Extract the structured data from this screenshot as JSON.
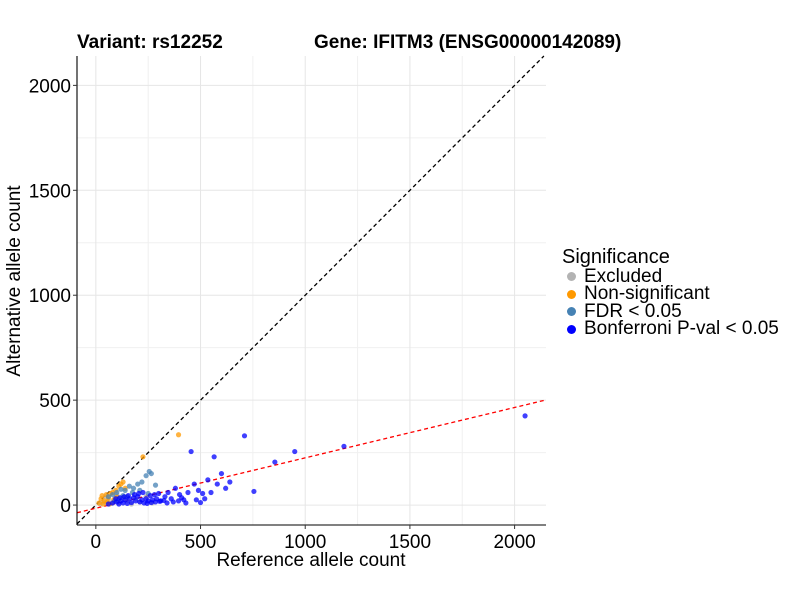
{
  "header": {
    "variant_label": "Variant: rs12252",
    "gene_label": "Gene: IFITM3 (ENSG00000142089)"
  },
  "legend": {
    "title": "Significance",
    "items": [
      {
        "label": "Excluded",
        "color": "#b3b3b3"
      },
      {
        "label": "Non-significant",
        "color": "#ff9900"
      },
      {
        "label": "FDR < 0.05",
        "color": "#4682b4"
      },
      {
        "label": "Bonferroni P-val < 0.05",
        "color": "#0000ff"
      }
    ]
  },
  "chart_data": {
    "type": "scatter",
    "title": "",
    "xlabel": "Reference allele count",
    "ylabel": "Alternative allele count",
    "xlim": [
      -90,
      2150
    ],
    "ylim": [
      -95,
      2140
    ],
    "x_ticks": [
      0,
      500,
      1000,
      1500,
      2000
    ],
    "y_ticks": [
      0,
      500,
      1000,
      1500,
      2000
    ],
    "grid": true,
    "legend_position": "right",
    "reference_lines": [
      {
        "slope": 1,
        "intercept": 0,
        "color": "#000000",
        "style": "dashed"
      },
      {
        "slope": 0.24,
        "intercept": -15,
        "color": "#ff0000",
        "style": "dashed"
      }
    ],
    "series": [
      {
        "name": "Excluded",
        "color": "#b3b3b3",
        "points": [
          [
            20,
            5
          ],
          [
            35,
            15
          ],
          [
            50,
            10
          ],
          [
            60,
            25
          ],
          [
            75,
            8
          ],
          [
            90,
            30
          ],
          [
            110,
            12
          ],
          [
            130,
            35
          ],
          [
            150,
            20
          ],
          [
            170,
            5
          ],
          [
            190,
            28
          ],
          [
            210,
            15
          ],
          [
            240,
            40
          ],
          [
            270,
            10
          ],
          [
            45,
            40
          ],
          [
            100,
            50
          ]
        ]
      },
      {
        "name": "Non-significant",
        "color": "#ff9900",
        "points": [
          [
            15,
            10
          ],
          [
            25,
            30
          ],
          [
            30,
            45
          ],
          [
            40,
            20
          ],
          [
            50,
            50
          ],
          [
            60,
            35
          ],
          [
            70,
            55
          ],
          [
            80,
            60
          ],
          [
            95,
            70
          ],
          [
            100,
            40
          ],
          [
            110,
            90
          ],
          [
            120,
            100
          ],
          [
            140,
            80
          ],
          [
            55,
            15
          ],
          [
            35,
            5
          ],
          [
            225,
            230
          ],
          [
            395,
            335
          ],
          [
            65,
            5
          ],
          [
            85,
            25
          ],
          [
            130,
            110
          ]
        ]
      },
      {
        "name": "FDR < 0.05",
        "color": "#4682b4",
        "points": [
          [
            60,
            40
          ],
          [
            80,
            50
          ],
          [
            100,
            60
          ],
          [
            120,
            75
          ],
          [
            140,
            70
          ],
          [
            160,
            90
          ],
          [
            180,
            80
          ],
          [
            200,
            100
          ],
          [
            220,
            110
          ],
          [
            240,
            140
          ],
          [
            255,
            160
          ],
          [
            265,
            150
          ],
          [
            285,
            95
          ],
          [
            90,
            20
          ],
          [
            110,
            30
          ],
          [
            150,
            40
          ],
          [
            175,
            60
          ],
          [
            210,
            70
          ],
          [
            250,
            55
          ],
          [
            130,
            45
          ]
        ]
      },
      {
        "name": "Bonferroni P-val < 0.05",
        "color": "#0000ff",
        "points": [
          [
            60,
            5
          ],
          [
            80,
            10
          ],
          [
            100,
            15
          ],
          [
            110,
            5
          ],
          [
            120,
            20
          ],
          [
            130,
            10
          ],
          [
            140,
            25
          ],
          [
            150,
            8
          ],
          [
            160,
            30
          ],
          [
            170,
            12
          ],
          [
            180,
            35
          ],
          [
            190,
            20
          ],
          [
            200,
            40
          ],
          [
            210,
            15
          ],
          [
            220,
            25
          ],
          [
            230,
            10
          ],
          [
            240,
            30
          ],
          [
            250,
            20
          ],
          [
            260,
            45
          ],
          [
            270,
            25
          ],
          [
            280,
            50
          ],
          [
            290,
            30
          ],
          [
            300,
            55
          ],
          [
            310,
            20
          ],
          [
            330,
            40
          ],
          [
            345,
            60
          ],
          [
            360,
            30
          ],
          [
            380,
            80
          ],
          [
            400,
            50
          ],
          [
            420,
            25
          ],
          [
            440,
            60
          ],
          [
            455,
            255
          ],
          [
            470,
            100
          ],
          [
            490,
            70
          ],
          [
            510,
            55
          ],
          [
            520,
            30
          ],
          [
            535,
            120
          ],
          [
            550,
            60
          ],
          [
            565,
            230
          ],
          [
            580,
            100
          ],
          [
            600,
            150
          ],
          [
            620,
            80
          ],
          [
            640,
            110
          ],
          [
            710,
            330
          ],
          [
            755,
            65
          ],
          [
            855,
            205
          ],
          [
            950,
            255
          ],
          [
            1185,
            280
          ],
          [
            2050,
            425
          ],
          [
            95,
            30
          ],
          [
            115,
            35
          ],
          [
            135,
            40
          ],
          [
            155,
            45
          ],
          [
            185,
            50
          ],
          [
            205,
            55
          ],
          [
            225,
            60
          ],
          [
            245,
            8
          ],
          [
            265,
            12
          ],
          [
            285,
            15
          ],
          [
            305,
            18
          ],
          [
            325,
            22
          ],
          [
            340,
            10
          ],
          [
            370,
            15
          ],
          [
            395,
            20
          ],
          [
            410,
            35
          ],
          [
            430,
            10
          ],
          [
            480,
            25
          ],
          [
            500,
            12
          ]
        ]
      }
    ]
  }
}
